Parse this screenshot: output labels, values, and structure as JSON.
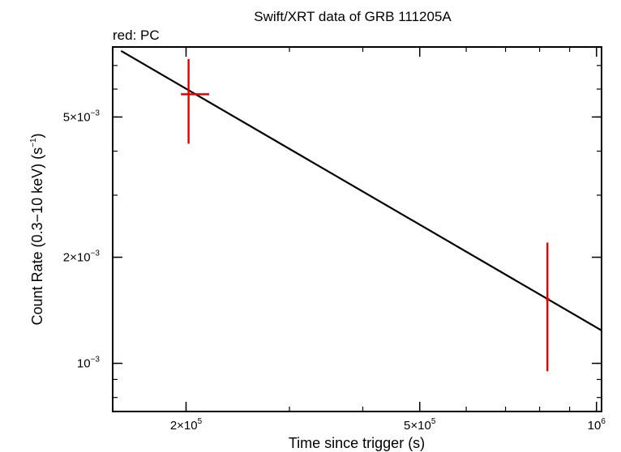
{
  "chart_data": {
    "type": "scatter",
    "title": "Swift/XRT data of GRB 111205A",
    "subtitle": "red: PC",
    "xlabel": "Time since trigger (s)",
    "ylabel_main": "Count Rate (0.3−10 keV) (s",
    "ylabel_exp": "−1",
    "ylabel_close": ")",
    "x_scale": "log",
    "y_scale": "log",
    "xlim": [
      150000,
      1020000
    ],
    "ylim": [
      0.00073,
      0.0079
    ],
    "x_ticks": [
      {
        "value": 200000,
        "mant": "2×10",
        "exp": "5"
      },
      {
        "value": 500000,
        "mant": "5×10",
        "exp": "5"
      },
      {
        "value": 1000000,
        "mant": "10",
        "exp": "6"
      }
    ],
    "y_ticks": [
      {
        "value": 0.005,
        "mant": "5×10",
        "exp": "−3"
      },
      {
        "value": 0.002,
        "mant": "2×10",
        "exp": "−3"
      },
      {
        "value": 0.001,
        "mant": "10",
        "exp": "−3"
      }
    ],
    "series": [
      {
        "mode": "PC",
        "color": "#e00000",
        "points": [
          {
            "x": 202000,
            "xerr": [
              196000,
              219000
            ],
            "y": 0.0058,
            "yerr": [
              0.0042,
              0.0073
            ]
          },
          {
            "x": 825000,
            "xerr": [
              820000,
              832000
            ],
            "y": 0.00152,
            "yerr": [
              0.00095,
              0.0022
            ]
          }
        ]
      }
    ],
    "model_line": {
      "color": "#000000",
      "points": [
        {
          "x": 155000,
          "y": 0.0077
        },
        {
          "x": 1020000,
          "y": 0.00124
        }
      ]
    }
  }
}
